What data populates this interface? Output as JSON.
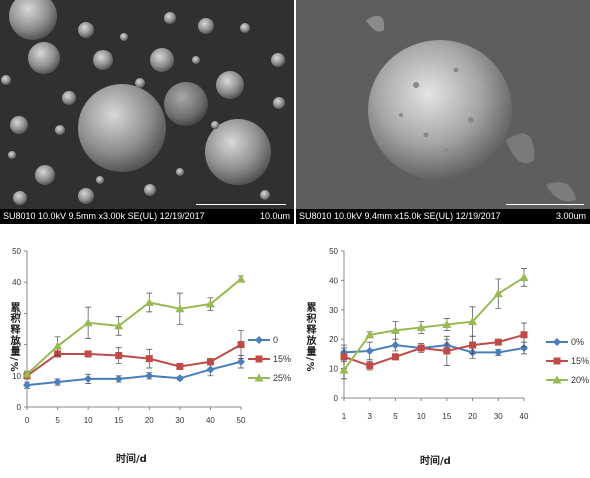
{
  "images": [
    {
      "caption": "SU8010 10.0kV 9.5mm x3.00k SE(UL) 12/19/2017",
      "scale": "10.0um"
    },
    {
      "caption": "SU8010 10.0kV 9.4mm x15.0k SE(UL) 12/19/2017",
      "scale": "3.00um"
    }
  ],
  "chart_data": [
    {
      "type": "line",
      "ylabel": "累积释放量/%",
      "xlabel": "时间/d",
      "x": [
        "0",
        "5",
        "10",
        "15",
        "20",
        "30",
        "40",
        "50"
      ],
      "ylim": [
        0,
        50
      ],
      "yticks": [
        "0",
        "10",
        "20",
        "30",
        "40",
        "50"
      ],
      "series": [
        {
          "name": "0",
          "color": "#4a7ebb",
          "marker": "diamond",
          "values": [
            7,
            8,
            9,
            9,
            10,
            9.2,
            12,
            14.5
          ],
          "errors": [
            1,
            1,
            1.5,
            1,
            1,
            0.5,
            2,
            2
          ]
        },
        {
          "name": "15%",
          "color": "#be4b48",
          "marker": "square",
          "values": [
            10,
            17,
            17,
            16.5,
            15.5,
            13,
            14.5,
            20
          ],
          "errors": [
            1,
            1,
            1,
            2.5,
            3,
            1,
            1,
            4.5
          ]
        },
        {
          "name": "25%",
          "color": "#98b954",
          "marker": "triangle",
          "values": [
            10.5,
            19.5,
            27,
            26,
            33.5,
            31.5,
            33,
            41
          ],
          "errors": [
            1,
            3,
            5,
            3,
            3,
            5,
            2,
            1
          ]
        }
      ]
    },
    {
      "type": "line",
      "ylabel": "累积释放量/%",
      "xlabel": "时间/d",
      "x": [
        "1",
        "3",
        "5",
        "10",
        "15",
        "20",
        "30",
        "40"
      ],
      "ylim": [
        0,
        50
      ],
      "yticks": [
        "0",
        "10",
        "20",
        "30",
        "40",
        "50"
      ],
      "series": [
        {
          "name": "0%",
          "color": "#4a7ebb",
          "marker": "diamond",
          "values": [
            15.5,
            16,
            18,
            17,
            18,
            15.5,
            15.5,
            17
          ],
          "errors": [
            1.5,
            3,
            2,
            1,
            2,
            2,
            1,
            2
          ]
        },
        {
          "name": "15%",
          "color": "#be4b48",
          "marker": "square",
          "values": [
            14,
            11,
            14,
            17,
            16,
            18,
            19,
            21.5
          ],
          "errors": [
            4,
            1.5,
            1,
            1.5,
            5,
            3,
            1,
            4
          ]
        },
        {
          "name": "20%",
          "color": "#98b954",
          "marker": "triangle",
          "values": [
            9.5,
            21.5,
            23,
            24,
            25,
            26,
            35.5,
            41
          ],
          "errors": [
            3,
            1,
            3,
            2,
            2,
            5,
            5,
            3
          ]
        }
      ]
    }
  ]
}
